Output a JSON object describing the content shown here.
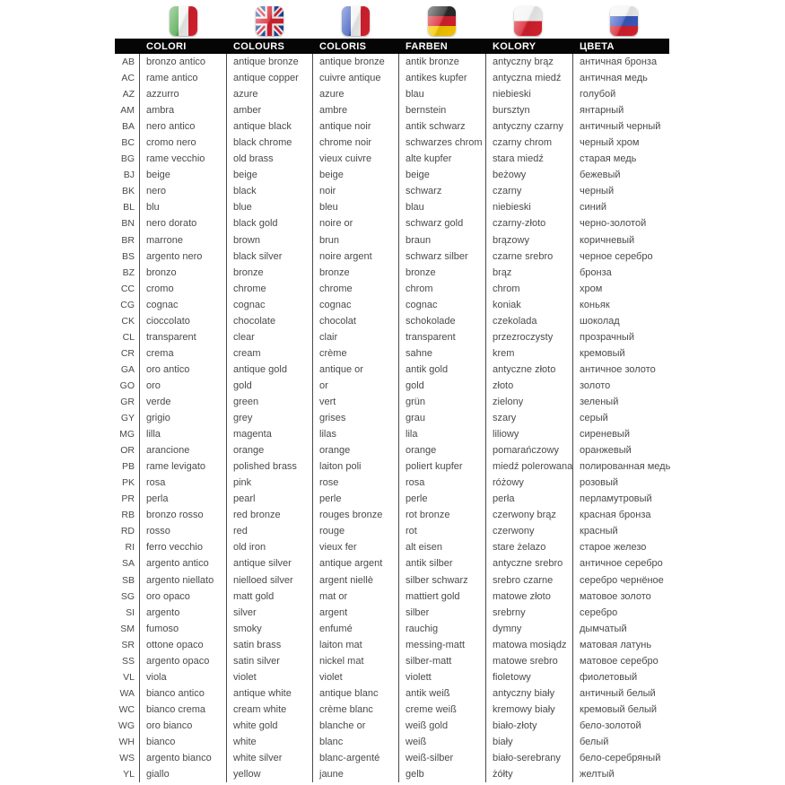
{
  "header": {
    "columns": [
      {
        "label": "COLORI",
        "flag": "italy-flag-icon",
        "language": "Italian"
      },
      {
        "label": "COLOURS",
        "flag": "uk-flag-icon",
        "language": "English"
      },
      {
        "label": "COLORIS",
        "flag": "france-flag-icon",
        "language": "French"
      },
      {
        "label": "FARBEN",
        "flag": "germany-flag-icon",
        "language": "German"
      },
      {
        "label": "KOLORY",
        "flag": "poland-flag-icon",
        "language": "Polish"
      },
      {
        "label": "ЦВЕТА",
        "flag": "russia-flag-icon",
        "language": "Russian"
      }
    ]
  },
  "colors": {
    "header_bg": "#050505",
    "header_text": "#ffffff",
    "body_text": "#4a4a4a",
    "divider": "#4a4a4a",
    "background": "#ffffff"
  },
  "table": {
    "rows": [
      [
        "AB",
        "bronzo antico",
        "antique bronze",
        "antique bronze",
        "antik bronze",
        "antyczny brąz",
        "античная бронза"
      ],
      [
        "AC",
        "rame antico",
        "antique copper",
        "cuivre antique",
        "antikes kupfer",
        "antyczna miedź",
        "античная медь"
      ],
      [
        "AZ",
        "azzurro",
        "azure",
        "azure",
        "blau",
        "niebieski",
        "голубой"
      ],
      [
        "AM",
        "ambra",
        "amber",
        "ambre",
        "bernstein",
        "bursztyn",
        "янтарный"
      ],
      [
        "BA",
        "nero antico",
        "antique black",
        "antique noir",
        "antik schwarz",
        "antyczny czarny",
        "античный черный"
      ],
      [
        "BC",
        "cromo nero",
        "black chrome",
        "chrome noir",
        "schwarzes chrom",
        "czarny chrom",
        "черный хром"
      ],
      [
        "BG",
        "rame vecchio",
        "old brass",
        "vieux cuivre",
        "alte kupfer",
        "stara miedź",
        "старая медь"
      ],
      [
        "BJ",
        "beige",
        "beige",
        "beige",
        "beige",
        "beżowy",
        "бежевый"
      ],
      [
        "BK",
        "nero",
        "black",
        "noir",
        "schwarz",
        "czarny",
        "черный"
      ],
      [
        "BL",
        "blu",
        "blue",
        "bleu",
        "blau",
        "niebieski",
        "синий"
      ],
      [
        "BN",
        "nero dorato",
        "black gold",
        "noire or",
        "schwarz gold",
        "czarny-złoto",
        "черно-золотой"
      ],
      [
        "BR",
        "marrone",
        "brown",
        "brun",
        "braun",
        "brązowy",
        "коричневый"
      ],
      [
        "BS",
        "argento nero",
        "black silver",
        "noire argent",
        "schwarz silber",
        "czarne srebro",
        "черное серебро"
      ],
      [
        "BZ",
        "bronzo",
        "bronze",
        "bronze",
        "bronze",
        "brąz",
        "бронза"
      ],
      [
        "CC",
        "cromo",
        "chrome",
        "chrome",
        "chrom",
        "chrom",
        "хром"
      ],
      [
        "CG",
        "cognac",
        "cognac",
        "cognac",
        "cognac",
        "koniak",
        "коньяк"
      ],
      [
        "CK",
        "cioccolato",
        "chocolate",
        "chocolat",
        "schokolade",
        "czekolada",
        "шоколад"
      ],
      [
        "CL",
        "transparent",
        "clear",
        "clair",
        "transparent",
        "przezroczysty",
        "прозрачный"
      ],
      [
        "CR",
        "crema",
        "cream",
        "crème",
        "sahne",
        "krem",
        "кремовый"
      ],
      [
        "GA",
        "oro antico",
        "antique gold",
        "antique or",
        "antik gold",
        "antyczne złoto",
        "античное золото"
      ],
      [
        "GO",
        "oro",
        "gold",
        "or",
        "gold",
        "złoto",
        "золото"
      ],
      [
        "GR",
        "verde",
        "green",
        "vert",
        "grün",
        "zielony",
        "зеленый"
      ],
      [
        "GY",
        "grigio",
        "grey",
        "grises",
        "grau",
        "szary",
        "серый"
      ],
      [
        "MG",
        "lilla",
        "magenta",
        "lilas",
        "lila",
        "liliowy",
        "сиреневый"
      ],
      [
        "OR",
        "arancione",
        "orange",
        "orange",
        "orange",
        "pomarańczowy",
        "оранжевый"
      ],
      [
        "PB",
        "rame levigato",
        "polished brass",
        "laiton poli",
        "poliert kupfer",
        "miedź polerowana",
        "полированная медь"
      ],
      [
        "PK",
        "rosa",
        "pink",
        "rose",
        "rosa",
        "różowy",
        "розовый"
      ],
      [
        "PR",
        "perla",
        "pearl",
        "perle",
        "perle",
        "perła",
        "перламутровый"
      ],
      [
        "RB",
        "bronzo rosso",
        "red bronze",
        "rouges bronze",
        "rot bronze",
        "czerwony brąz",
        "красная бронза"
      ],
      [
        "RD",
        "rosso",
        "red",
        "rouge",
        "rot",
        "czerwony",
        "красный"
      ],
      [
        "RI",
        "ferro vecchio",
        "old iron",
        "vieux fer",
        "alt eisen",
        "stare żelazo",
        "старое железо"
      ],
      [
        "SA",
        "argento antico",
        "antique silver",
        "antique argent",
        "antik silber",
        "antyczne srebro",
        "античное серебро"
      ],
      [
        "SB",
        "argento niellato",
        "nielloed silver",
        "argent niellè",
        "silber schwarz",
        "srebro czarne",
        "серебро чернёное"
      ],
      [
        "SG",
        "oro opaco",
        "matt gold",
        "mat or",
        "mattiert gold",
        "matowe złoto",
        "матовое золото"
      ],
      [
        "SI",
        "argento",
        "silver",
        "argent",
        "silber",
        "srebrny",
        "серебро"
      ],
      [
        "SM",
        "fumoso",
        "smoky",
        "enfumé",
        "rauchig",
        "dymny",
        "дымчатый"
      ],
      [
        "SR",
        "ottone opaco",
        "satin brass",
        "laiton mat",
        "messing-matt",
        "matowa mosiądz",
        "матовая латунь"
      ],
      [
        "SS",
        "argento opaco",
        "satin silver",
        "nickel mat",
        "silber-matt",
        "matowe srebro",
        "матовое серебро"
      ],
      [
        "VL",
        "viola",
        "violet",
        "violet",
        "violett",
        "fioletowy",
        "фиолетовый"
      ],
      [
        "WA",
        "bianco antico",
        "antique white",
        "antique blanc",
        "antik weiß",
        "antyczny biały",
        "античный белый"
      ],
      [
        "WC",
        "bianco crema",
        "cream white",
        "crème blanc",
        "creme weiß",
        "kremowy biały",
        "кремовый белый"
      ],
      [
        "WG",
        "oro bianco",
        "white gold",
        "blanche or",
        "weiß gold",
        "biało-złoty",
        "бело-золотой"
      ],
      [
        "WH",
        "bianco",
        "white",
        "blanc",
        "weiß",
        "biały",
        "белый"
      ],
      [
        "WS",
        "argento bianco",
        "white silver",
        "blanc-argenté",
        "weiß-silber",
        "biało-serebrany",
        "бело-серебряный"
      ],
      [
        "YL",
        "giallo",
        "yellow",
        "jaune",
        "gelb",
        "żółty",
        "желтый"
      ]
    ]
  }
}
